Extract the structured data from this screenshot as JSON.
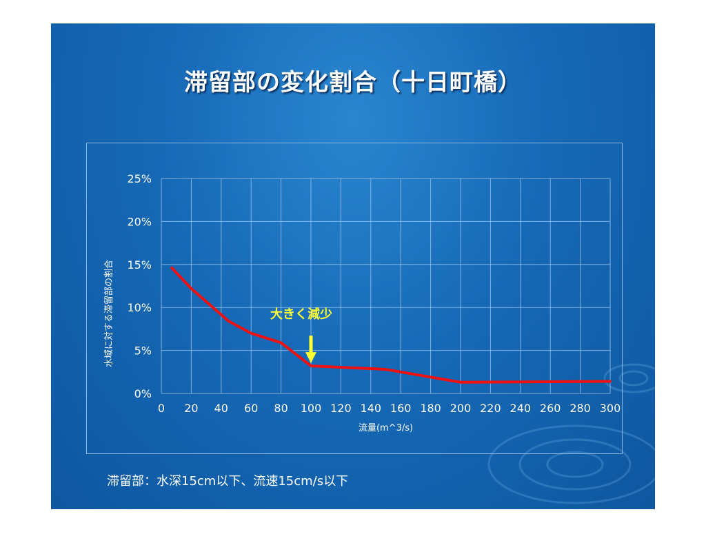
{
  "slide": {
    "title": "滞留部の変化割合（十日町橋）",
    "footnote": "滞留部：水深15cm以下、流速15cm/s以下",
    "annotation": "大きく減少"
  },
  "colors": {
    "background": "#1669b6",
    "series_line": "#ee1111",
    "annotation": "#ffff33",
    "grid": "#9cc3ea"
  },
  "chart_data": {
    "type": "line",
    "title": "",
    "xlabel": "流量(m^3/s)",
    "ylabel": "水域に対する滞留部の割合",
    "xlim": [
      0,
      300
    ],
    "ylim": [
      0,
      25
    ],
    "x_ticks": [
      "0",
      "20",
      "40",
      "60",
      "80",
      "100",
      "120",
      "140",
      "160",
      "180",
      "200",
      "220",
      "240",
      "260",
      "280",
      "300"
    ],
    "y_ticks": [
      "0%",
      "5%",
      "10%",
      "15%",
      "20%",
      "25%"
    ],
    "grid": true,
    "legend": "none",
    "series": [
      {
        "x": [
          7,
          20,
          45,
          60,
          80,
          100,
          150,
          200,
          300
        ],
        "y": [
          14.6,
          12.2,
          8.4,
          7.0,
          5.9,
          3.2,
          2.8,
          1.3,
          1.4
        ]
      }
    ],
    "annotation": {
      "text": "大きく減少",
      "x": 100,
      "y": 3.2
    }
  }
}
